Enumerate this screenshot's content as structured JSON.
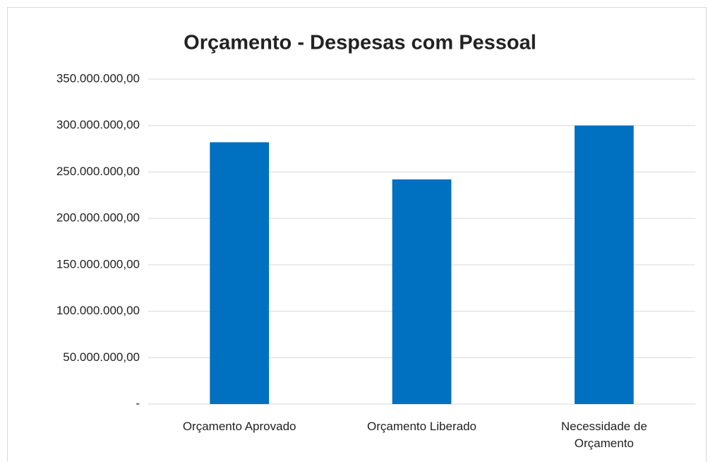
{
  "chart_data": {
    "type": "bar",
    "title": "Orçamento - Despesas com Pessoal",
    "categories": [
      "Orçamento Aprovado",
      "Orçamento Liberado",
      "Necessidade de Orçamento"
    ],
    "values": [
      282000000,
      242000000,
      300000000
    ],
    "color": "#0070c0",
    "ylim": [
      0,
      350000000
    ],
    "yticks": [
      {
        "value": 0,
        "label": "-"
      },
      {
        "value": 50000000,
        "label": "50.000.000,00"
      },
      {
        "value": 100000000,
        "label": "100.000.000,00"
      },
      {
        "value": 150000000,
        "label": "150.000.000,00"
      },
      {
        "value": 200000000,
        "label": "200.000.000,00"
      },
      {
        "value": 250000000,
        "label": "250.000.000,00"
      },
      {
        "value": 300000000,
        "label": "300.000.000,00"
      },
      {
        "value": 350000000,
        "label": "350.000.000,00"
      }
    ],
    "grid": true
  }
}
